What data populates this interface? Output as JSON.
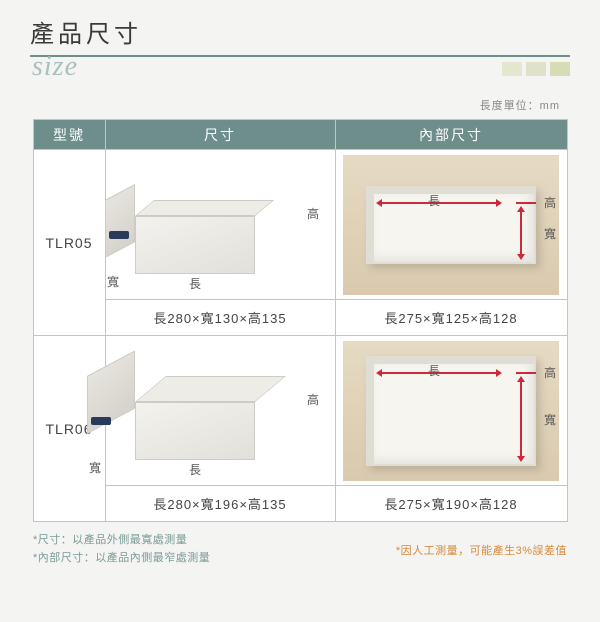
{
  "header": {
    "title": "產品尺寸",
    "script": "size",
    "accent_colors": [
      "#e4e6d0",
      "#dfe2c8",
      "#d7dcb5"
    ],
    "rule_color": "#6e8e8b"
  },
  "unit_note": "長度單位：mm",
  "table": {
    "header_bg": "#6e8e8b",
    "border_color": "#b7cac8",
    "columns": {
      "model": "型號",
      "dimensions": "尺寸",
      "inner": "內部尺寸"
    },
    "dim_labels": {
      "length": "長",
      "width": "寬",
      "height": "高"
    },
    "arrow_color": "#cc2a3a",
    "rows": [
      {
        "model": "TLR05",
        "outer_text": "長280×寬130×高135",
        "inner_text": "長275×寬125×高128",
        "box_ratio": "narrow"
      },
      {
        "model": "TLR06",
        "outer_text": "長280×寬196×高135",
        "inner_text": "長275×寬190×高128",
        "box_ratio": "wide"
      }
    ]
  },
  "footnotes": {
    "left1": "*尺寸：以產品外側最寬處測量",
    "left2": "*內部尺寸：以產品內側最窄處測量",
    "right": "*因人工測量，可能產生3%誤差值"
  }
}
